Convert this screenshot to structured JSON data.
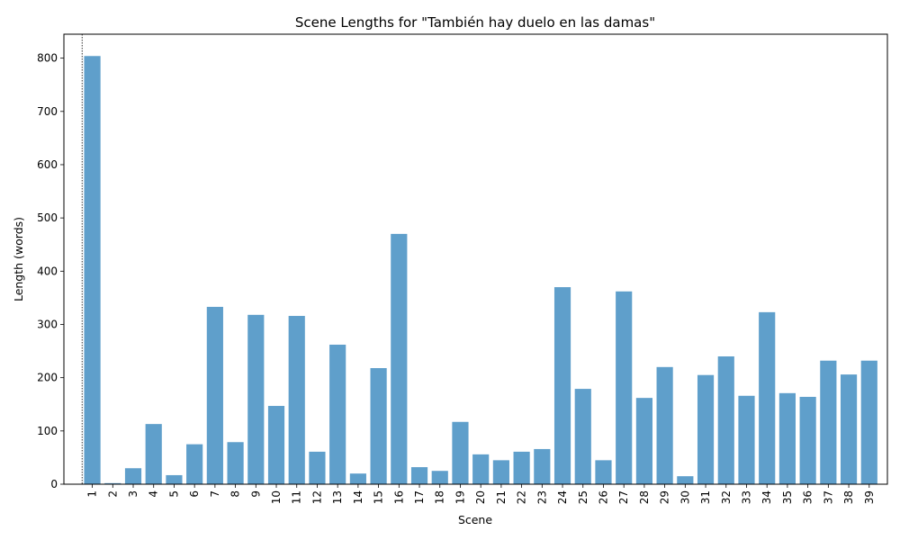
{
  "chart_data": {
    "type": "bar",
    "title": "Scene Lengths for \"También hay duelo en las damas\"",
    "xlabel": "Scene",
    "ylabel": "Length (words)",
    "ylim": [
      0,
      845
    ],
    "yticks": [
      0,
      100,
      200,
      300,
      400,
      500,
      600,
      700,
      800
    ],
    "grid": false,
    "bar_color": "#5f9fcb",
    "categories": [
      "1",
      "2",
      "3",
      "4",
      "5",
      "6",
      "7",
      "8",
      "9",
      "10",
      "11",
      "12",
      "13",
      "14",
      "15",
      "16",
      "17",
      "18",
      "19",
      "20",
      "21",
      "22",
      "23",
      "24",
      "25",
      "26",
      "27",
      "28",
      "29",
      "30",
      "31",
      "32",
      "33",
      "34",
      "35",
      "36",
      "37",
      "38",
      "39"
    ],
    "values": [
      804,
      2,
      30,
      113,
      17,
      75,
      333,
      79,
      318,
      147,
      316,
      61,
      262,
      20,
      218,
      470,
      32,
      25,
      117,
      56,
      45,
      61,
      66,
      370,
      179,
      45,
      362,
      162,
      220,
      15,
      205,
      240,
      166,
      323,
      171,
      164,
      232,
      206,
      232
    ],
    "marker_line_at_category": "1"
  }
}
